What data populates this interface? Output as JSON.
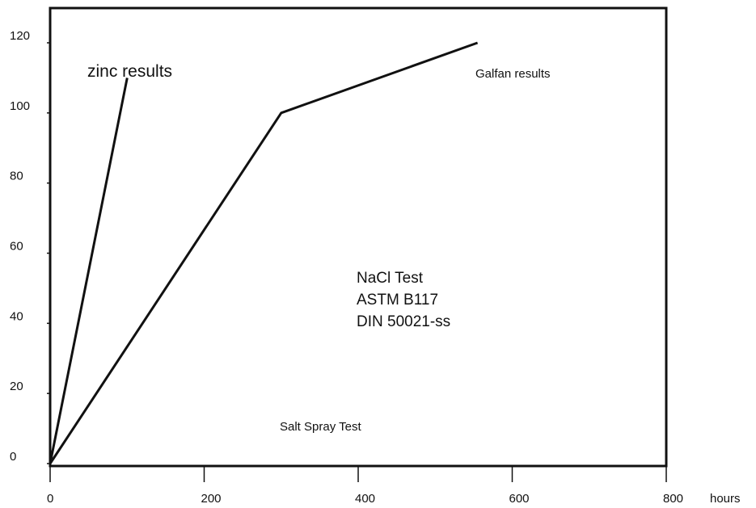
{
  "chart_data": {
    "type": "line",
    "title": "",
    "xlabel": "",
    "ylabel": "",
    "x_unit": "hours",
    "xlim": [
      0,
      800
    ],
    "ylim": [
      0,
      130
    ],
    "x_ticks": [
      "0",
      "200",
      "400",
      "600",
      "800"
    ],
    "y_ticks": [
      "0",
      "20",
      "40",
      "60",
      "80",
      "100",
      "120"
    ],
    "grid": false,
    "series": [
      {
        "name": "zinc results",
        "x": [
          0,
          100
        ],
        "y": [
          0,
          110
        ]
      },
      {
        "name": "Galfan results",
        "x": [
          0,
          300,
          555
        ],
        "y": [
          0,
          100,
          120
        ]
      }
    ],
    "annotations": {
      "test_lines": [
        "NaCl Test",
        "ASTM B117",
        "DIN 50021-ss"
      ],
      "caption": "Salt Spray Test"
    }
  }
}
